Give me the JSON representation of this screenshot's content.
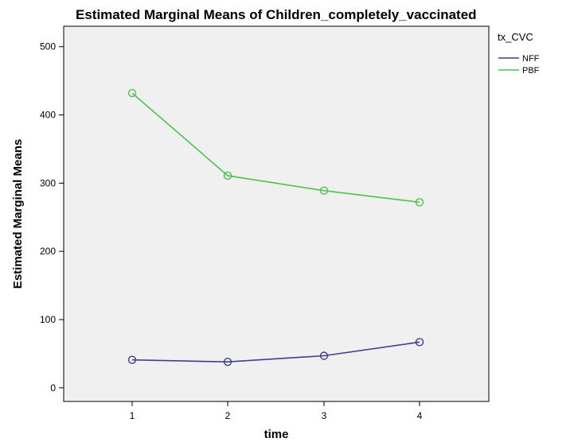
{
  "chart_data": {
    "type": "line",
    "title": "Estimated Marginal Means of Children_completely_vaccinated",
    "xlabel": "time",
    "ylabel": "Estimated Marginal Means",
    "categories": [
      "1",
      "2",
      "3",
      "4"
    ],
    "ylim": [
      -20,
      530
    ],
    "yticks": [
      0,
      100,
      200,
      300,
      400,
      500
    ],
    "grid": false,
    "legend": {
      "title": "tx_CVC",
      "placement": "right"
    },
    "series": [
      {
        "name": "NFF",
        "color": "#3f3f8f",
        "values": [
          41,
          38,
          47,
          67
        ]
      },
      {
        "name": "PBF",
        "color": "#4cc24c",
        "values": [
          432,
          311,
          289,
          272
        ]
      }
    ]
  }
}
